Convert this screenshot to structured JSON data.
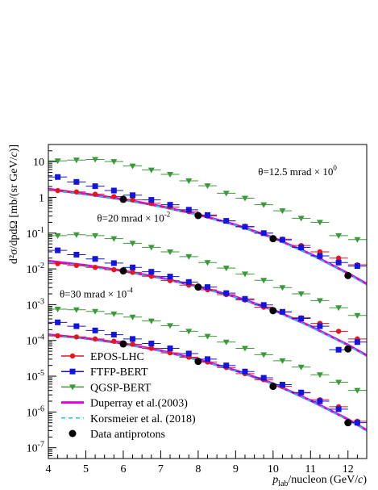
{
  "chart_data": {
    "type": "scatter",
    "xlabel": {
      "var": "p",
      "sub": "lab",
      "rest": "/nucleon (GeV/",
      "c": "c",
      "close": ")"
    },
    "ylabel": {
      "main": "d²σ/dpdΩ [mb/(sr GeV/",
      "c": "c",
      "close": ")]"
    },
    "xlim": [
      4,
      12.5
    ],
    "ylim": [
      5e-08,
      30
    ],
    "y_scale": "log",
    "grid": false,
    "x_ticks": [
      "4",
      "5",
      "6",
      "7",
      "8",
      "9",
      "10",
      "11",
      "12"
    ],
    "y_ticks": [
      {
        "base": "10",
        "exp": "-7",
        "v": 1e-07
      },
      {
        "base": "10",
        "exp": "-6",
        "v": 1e-06
      },
      {
        "base": "10",
        "exp": "-5",
        "v": 1e-05
      },
      {
        "base": "10",
        "exp": "-4",
        "v": 0.0001
      },
      {
        "base": "10",
        "exp": "-3",
        "v": 0.001
      },
      {
        "base": "10",
        "exp": "-2",
        "v": 0.01
      },
      {
        "base": "10",
        "exp": "-1",
        "v": 0.1
      },
      {
        "base": "1",
        "exp": "",
        "v": 1
      },
      {
        "base": "10",
        "exp": "",
        "v": 10
      }
    ],
    "annotations": [
      {
        "text": "θ=12.5 mrad × 10",
        "exp": "0",
        "x": 9.6,
        "y": 4.2
      },
      {
        "text": "θ=20 mrad × 10",
        "exp": "-2",
        "x": 5.3,
        "y": 0.21
      },
      {
        "text": "θ=30 mrad × 10",
        "exp": "-4",
        "x": 4.3,
        "y": 0.0016
      }
    ],
    "legend_placement": "bottom-left",
    "legend": [
      {
        "label": "EPOS-LHC",
        "color": "#e8141c",
        "marker": "circle",
        "line": "solid"
      },
      {
        "label": "FTFP-BERT",
        "color": "#1414e0",
        "marker": "square",
        "line": "solid"
      },
      {
        "label": "QGSP-BERT",
        "color": "#3a9a3a",
        "marker": "triangle-down",
        "line": "solid"
      },
      {
        "label": "Duperray et al.(2003)",
        "color": "#e000e0",
        "marker": "none",
        "line": "thick"
      },
      {
        "label": "Korsmeier et al. (2018)",
        "color": "#18c8d0",
        "marker": "none",
        "line": "dashed"
      },
      {
        "label": "Data antiprotons",
        "color": "#000000",
        "marker": "circle",
        "line": "none"
      }
    ],
    "x_bins": [
      4.0,
      4.5,
      5.0,
      5.5,
      6.0,
      6.5,
      7.0,
      7.5,
      8.0,
      8.5,
      9.0,
      9.5,
      10.0,
      10.5,
      11.0,
      11.5,
      12.0
    ],
    "series": [
      {
        "name": "EPOS-LHC",
        "group": "12.5",
        "x": [
          4.25,
          4.75,
          5.25,
          5.75,
          6.25,
          6.75,
          7.25,
          7.75,
          8.25,
          8.75,
          9.25,
          9.75,
          10.25,
          10.75,
          11.25,
          11.75,
          12.25
        ],
        "y": [
          1.55,
          1.42,
          1.22,
          1.05,
          0.85,
          0.68,
          0.54,
          0.4,
          0.3,
          0.22,
          0.155,
          0.1,
          0.068,
          0.045,
          0.03,
          0.02,
          0.013
        ]
      },
      {
        "name": "FTFP-BERT",
        "group": "12.5",
        "x": [
          4.25,
          4.75,
          5.25,
          5.75,
          6.25,
          6.75,
          7.25,
          7.75,
          8.25,
          8.75,
          9.25,
          9.75,
          10.25,
          10.75,
          11.25,
          11.75,
          12.25
        ],
        "y": [
          3.7,
          2.7,
          2.05,
          1.55,
          1.15,
          0.85,
          0.62,
          0.45,
          0.32,
          0.22,
          0.15,
          0.1,
          0.065,
          0.04,
          0.023,
          0.015,
          0.012
        ]
      },
      {
        "name": "QGSP-BERT",
        "group": "12.5",
        "x": [
          4.25,
          4.75,
          5.25,
          5.75,
          6.25,
          6.75,
          7.25,
          7.75,
          8.25,
          8.75,
          9.25,
          9.75,
          10.25,
          10.75,
          11.25,
          11.75,
          12.25
        ],
        "y": [
          10.5,
          11.0,
          11.5,
          10.0,
          7.5,
          5.8,
          4.4,
          2.9,
          2.1,
          1.3,
          0.95,
          0.62,
          0.42,
          0.26,
          0.2,
          0.085,
          0.066
        ]
      },
      {
        "name": "Data antiprotons",
        "group": "12.5",
        "x": [
          6.0,
          8.0,
          10.0,
          12.0
        ],
        "y": [
          0.88,
          0.31,
          0.07,
          0.0065
        ]
      },
      {
        "name": "EPOS-LHC",
        "group": "20",
        "x": [
          4.25,
          4.75,
          5.25,
          5.75,
          6.25,
          6.75,
          7.25,
          7.75,
          8.25,
          8.75,
          9.25,
          9.75,
          10.25,
          10.75,
          11.25,
          11.75,
          12.25
        ],
        "y": [
          0.014,
          0.0125,
          0.011,
          0.0095,
          0.008,
          0.0062,
          0.0047,
          0.0035,
          0.0026,
          0.0019,
          0.00135,
          0.00085,
          0.00062,
          0.00043,
          0.0003,
          0.00018,
          0.00011
        ]
      },
      {
        "name": "FTFP-BERT",
        "group": "20",
        "x": [
          4.25,
          4.75,
          5.25,
          5.75,
          6.25,
          6.75,
          7.25,
          7.75,
          8.25,
          8.75,
          9.25,
          9.75,
          10.25,
          10.75,
          11.25,
          11.75,
          12.25
        ],
        "y": [
          0.033,
          0.025,
          0.019,
          0.0145,
          0.011,
          0.0083,
          0.0061,
          0.0043,
          0.0031,
          0.0021,
          0.00145,
          0.00098,
          0.00063,
          0.00041,
          0.00025,
          5.5e-05,
          9e-05
        ]
      },
      {
        "name": "QGSP-BERT",
        "group": "20",
        "x": [
          4.25,
          4.75,
          5.25,
          5.75,
          6.25,
          6.75,
          7.25,
          7.75,
          8.25,
          8.75,
          9.25,
          9.75,
          10.25,
          10.75,
          11.25,
          11.75,
          12.25
        ],
        "y": [
          0.085,
          0.09,
          0.085,
          0.07,
          0.052,
          0.04,
          0.03,
          0.022,
          0.015,
          0.0105,
          0.0072,
          0.0048,
          0.003,
          0.002,
          0.0013,
          0.00082,
          0.0005
        ]
      },
      {
        "name": "Data antiprotons",
        "group": "20",
        "x": [
          6.0,
          8.0,
          10.0,
          12.0
        ],
        "y": [
          0.0088,
          0.0031,
          0.00068,
          5.8e-05
        ]
      },
      {
        "name": "EPOS-LHC",
        "group": "30",
        "x": [
          4.25,
          4.75,
          5.25,
          5.75,
          6.25,
          6.75,
          7.25,
          7.75,
          8.25,
          8.75,
          9.25,
          9.75,
          10.25,
          10.75,
          11.25,
          11.75,
          12.25
        ],
        "y": [
          0.000135,
          0.000125,
          0.00011,
          9.5e-05,
          7.8e-05,
          6e-05,
          4.5e-05,
          3.4e-05,
          2.5e-05,
          1.75e-05,
          1.18e-05,
          8e-06,
          5.2e-06,
          3.4e-06,
          2.2e-06,
          1.4e-06,
          5.5e-07
        ]
      },
      {
        "name": "FTFP-BERT",
        "group": "30",
        "x": [
          4.25,
          4.75,
          5.25,
          5.75,
          6.25,
          6.75,
          7.25,
          7.75,
          8.25,
          8.75,
          9.25,
          9.75,
          10.25,
          10.75,
          11.25,
          11.75,
          12.25
        ],
        "y": [
          0.00032,
          0.00025,
          0.00019,
          0.000145,
          0.00011,
          8.2e-05,
          6e-05,
          4.3e-05,
          3e-05,
          2e-05,
          1.35e-05,
          9e-06,
          5.8e-06,
          3.5e-06,
          2e-06,
          1.2e-06,
          5e-07
        ]
      },
      {
        "name": "QGSP-BERT",
        "group": "30",
        "x": [
          4.25,
          4.75,
          5.25,
          5.75,
          6.25,
          6.75,
          7.25,
          7.75,
          8.25,
          8.75,
          9.25,
          9.75,
          10.25,
          10.75,
          11.25,
          11.75,
          12.25
        ],
        "y": [
          0.00075,
          0.00072,
          0.00065,
          0.00055,
          0.00045,
          0.00035,
          0.00026,
          0.00018,
          0.00013,
          9e-05,
          6e-05,
          4e-05,
          2.7e-05,
          1.8e-05,
          1.1e-05,
          6.8e-06,
          4e-06
        ]
      },
      {
        "name": "Data antiprotons",
        "group": "30",
        "x": [
          6.0,
          8.0,
          10.0,
          12.0
        ],
        "y": [
          8e-05,
          2.6e-05,
          5.2e-06,
          5e-07
        ]
      }
    ],
    "curves": [
      {
        "name": "Duperray et al.(2003)",
        "group": "12.5",
        "x": [
          4.0,
          5.0,
          6.0,
          7.0,
          8.0,
          9.0,
          10.0,
          11.0,
          12.0,
          12.5
        ],
        "y": [
          1.7,
          1.25,
          0.88,
          0.56,
          0.33,
          0.17,
          0.075,
          0.026,
          0.0075,
          0.0038
        ]
      },
      {
        "name": "Korsmeier et al. (2018)",
        "group": "12.5",
        "x": [
          4.0,
          5.0,
          6.0,
          7.0,
          8.0,
          9.0,
          10.0,
          11.0,
          12.0,
          12.5
        ],
        "y": [
          1.6,
          1.18,
          0.84,
          0.54,
          0.32,
          0.165,
          0.072,
          0.025,
          0.0072,
          0.0036
        ]
      },
      {
        "name": "Duperray et al.(2003)",
        "group": "20",
        "x": [
          4.0,
          5.0,
          6.0,
          7.0,
          8.0,
          9.0,
          10.0,
          11.0,
          12.0,
          12.5
        ],
        "y": [
          0.0165,
          0.0125,
          0.0088,
          0.0056,
          0.0032,
          0.00165,
          0.00072,
          0.00025,
          7.5e-05,
          3.8e-05
        ]
      },
      {
        "name": "Korsmeier et al. (2018)",
        "group": "20",
        "x": [
          4.0,
          5.0,
          6.0,
          7.0,
          8.0,
          9.0,
          10.0,
          11.0,
          12.0,
          12.5
        ],
        "y": [
          0.0155,
          0.0118,
          0.0084,
          0.0054,
          0.0031,
          0.0016,
          0.0007,
          0.00024,
          7.2e-05,
          3.6e-05
        ]
      },
      {
        "name": "Duperray et al.(2003)",
        "group": "30",
        "x": [
          4.0,
          5.0,
          6.0,
          7.0,
          8.0,
          9.0,
          10.0,
          11.0,
          12.0,
          12.5
        ],
        "y": [
          0.000145,
          0.000115,
          8.2e-05,
          5.2e-05,
          2.9e-05,
          1.45e-05,
          6.2e-06,
          2.1e-06,
          6.2e-07,
          3.1e-07
        ]
      },
      {
        "name": "Korsmeier et al. (2018)",
        "group": "30",
        "x": [
          4.0,
          5.0,
          6.0,
          7.0,
          8.0,
          9.0,
          10.0,
          11.0,
          12.0,
          12.5
        ],
        "y": [
          0.000138,
          0.00011,
          7.9e-05,
          5e-05,
          2.8e-05,
          1.4e-05,
          6e-06,
          2e-06,
          6e-07,
          3e-07
        ]
      }
    ]
  }
}
